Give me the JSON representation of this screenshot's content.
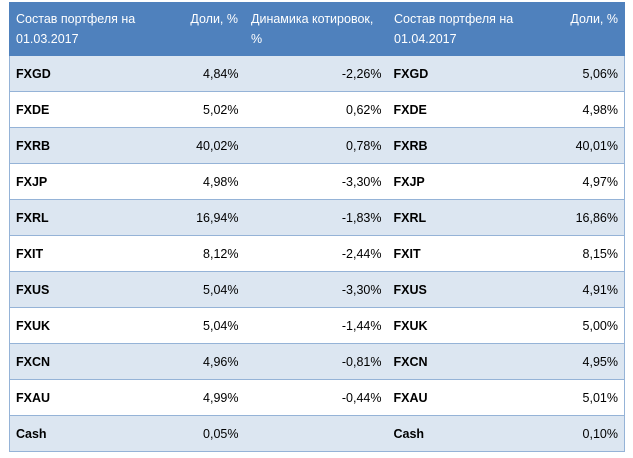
{
  "table": {
    "headers": [
      "Состав портфеля на 01.03.2017",
      "Доли, %",
      "Динамика котировок, %",
      "Состав портфеля на 01.04.2017",
      "Доли, %"
    ],
    "rows": [
      {
        "ticker_mar": "FXGD",
        "share_mar": "4,84%",
        "dynamics": "-2,26%",
        "ticker_apr": "FXGD",
        "share_apr": "5,06%"
      },
      {
        "ticker_mar": "FXDE",
        "share_mar": "5,02%",
        "dynamics": "0,62%",
        "ticker_apr": "FXDE",
        "share_apr": "4,98%"
      },
      {
        "ticker_mar": "FXRB",
        "share_mar": "40,02%",
        "dynamics": "0,78%",
        "ticker_apr": "FXRB",
        "share_apr": "40,01%"
      },
      {
        "ticker_mar": "FXJP",
        "share_mar": "4,98%",
        "dynamics": "-3,30%",
        "ticker_apr": "FXJP",
        "share_apr": "4,97%"
      },
      {
        "ticker_mar": "FXRL",
        "share_mar": "16,94%",
        "dynamics": "-1,83%",
        "ticker_apr": "FXRL",
        "share_apr": "16,86%"
      },
      {
        "ticker_mar": "FXIT",
        "share_mar": "8,12%",
        "dynamics": "-2,44%",
        "ticker_apr": "FXIT",
        "share_apr": "8,15%"
      },
      {
        "ticker_mar": "FXUS",
        "share_mar": "5,04%",
        "dynamics": "-3,30%",
        "ticker_apr": "FXUS",
        "share_apr": "4,91%"
      },
      {
        "ticker_mar": "FXUK",
        "share_mar": "5,04%",
        "dynamics": "-1,44%",
        "ticker_apr": "FXUK",
        "share_apr": "5,00%"
      },
      {
        "ticker_mar": "FXCN",
        "share_mar": "4,96%",
        "dynamics": "-0,81%",
        "ticker_apr": "FXCN",
        "share_apr": "4,95%"
      },
      {
        "ticker_mar": "FXAU",
        "share_mar": "4,99%",
        "dynamics": "-0,44%",
        "ticker_apr": "FXAU",
        "share_apr": "5,01%"
      },
      {
        "ticker_mar": "Cash",
        "share_mar": "0,05%",
        "dynamics": "",
        "ticker_apr": "Cash",
        "share_apr": "0,10%"
      }
    ]
  },
  "colors": {
    "header_bg": "#4f81bd",
    "header_text": "#ffffff",
    "band_row": "#dce6f1",
    "plain_row": "#ffffff",
    "row_border": "#95b3d7"
  }
}
